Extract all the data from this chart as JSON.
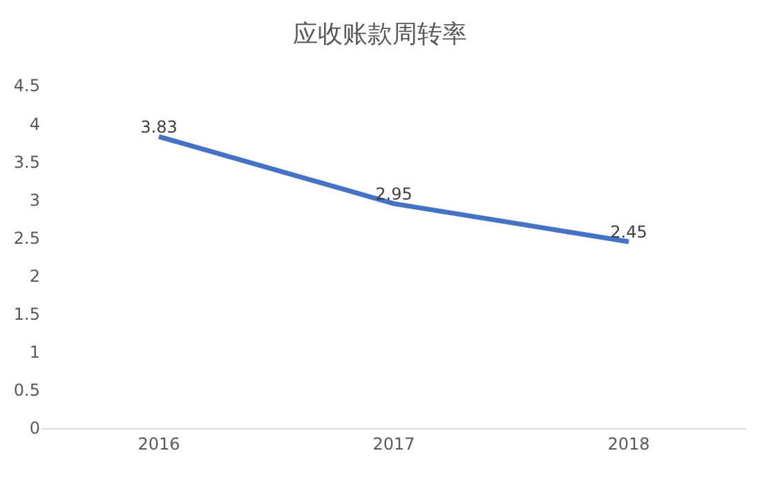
{
  "chart_data": {
    "type": "line",
    "title": "应收账款周转率",
    "categories": [
      "2016",
      "2017",
      "2018"
    ],
    "series": [
      {
        "color": "#4472c4",
        "values": [
          3.83,
          2.95,
          2.45
        ]
      }
    ],
    "ylim": [
      0,
      4.5
    ],
    "yticks": [
      0,
      0.5,
      1,
      1.5,
      2,
      2.5,
      3,
      3.5,
      4,
      4.5
    ],
    "data_labels": true,
    "grid": false,
    "legend": false,
    "marker": "none",
    "line_style": "solid"
  }
}
